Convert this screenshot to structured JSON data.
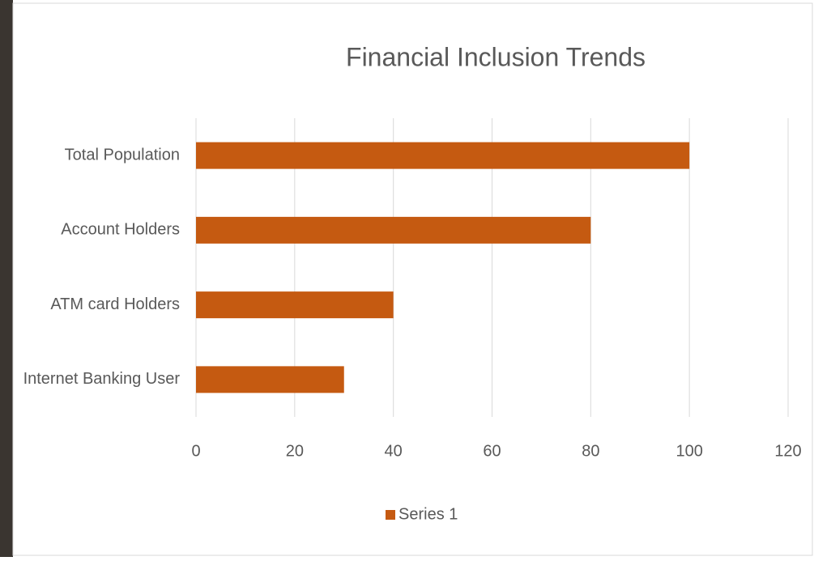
{
  "chart_data": {
    "type": "bar",
    "orientation": "horizontal",
    "title": "Financial Inclusion Trends",
    "categories": [
      "Total Population",
      "Account Holders",
      "ATM card Holders",
      "Internet Banking User"
    ],
    "series": [
      {
        "name": "Series 1",
        "color": "#c55a11",
        "values": [
          100,
          80,
          40,
          30
        ]
      }
    ],
    "xlim": [
      0,
      120
    ],
    "xticks": [
      0,
      20,
      40,
      60,
      80,
      100,
      120
    ],
    "grid": true,
    "legend": "bottom"
  }
}
